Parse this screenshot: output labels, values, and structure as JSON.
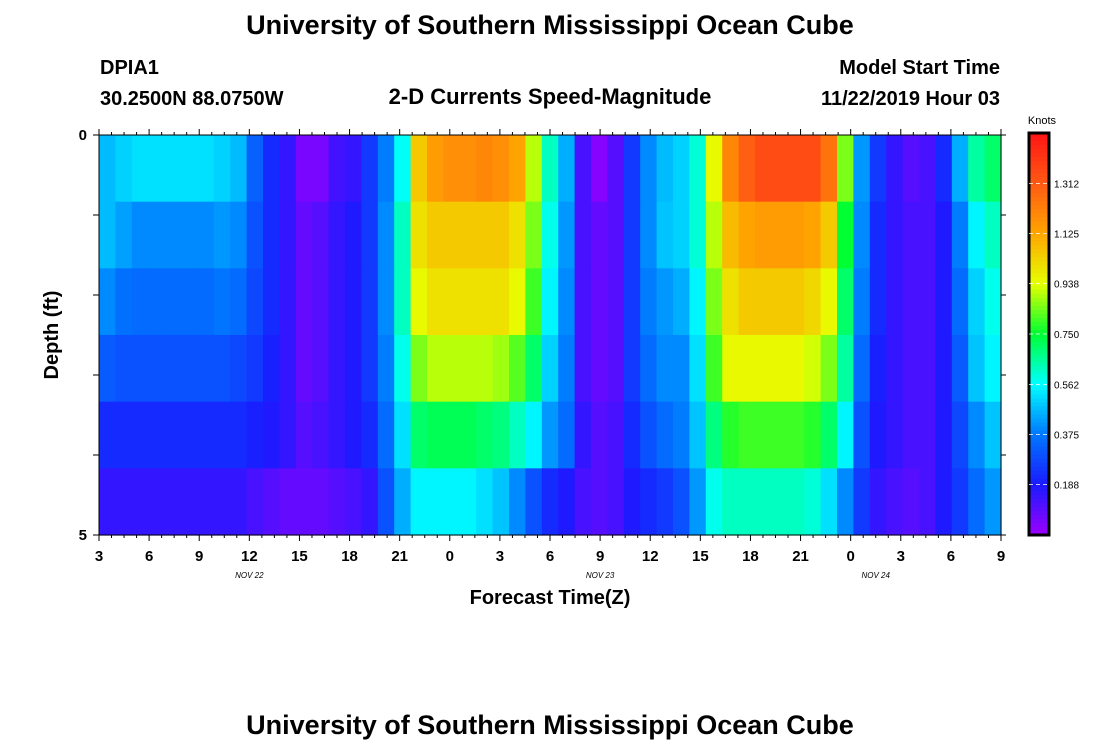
{
  "page": {
    "title_top": "University of Southern Mississippi Ocean Cube",
    "title_bottom": "University of Southern Mississippi Ocean Cube",
    "station_id": "DPIA1",
    "station_coords": "30.2500N 88.0750W",
    "plot_title": "2-D Currents Speed-Magnitude",
    "model_start_label": "Model Start Time",
    "model_start_value": "11/22/2019 Hour 03"
  },
  "colors": {
    "ramp": [
      "#9b00ff",
      "#1a1aff",
      "#0078ff",
      "#00ffff",
      "#00ff33",
      "#e6ff00",
      "#ffa500",
      "#ff5a14",
      "#ff1414"
    ],
    "background": "#ffffff"
  },
  "chart_data": {
    "type": "heatmap",
    "title": "2-D Currents Speed-Magnitude",
    "xlabel": "Forecast Time(Z)",
    "ylabel": "Depth (ft)",
    "x_ticks": [
      "3",
      "6",
      "9",
      "12",
      "15",
      "18",
      "21",
      "0",
      "3",
      "6",
      "9",
      "12",
      "15",
      "18",
      "21",
      "0",
      "3",
      "6",
      "9"
    ],
    "date_labels": [
      {
        "text": "NOV  22",
        "at_tick": 3
      },
      {
        "text": "NOV  23",
        "at_tick": 10
      },
      {
        "text": "NOV  24",
        "at_tick": 15.5
      }
    ],
    "y_ticks": [
      "0",
      "5"
    ],
    "y_range": [
      0,
      5
    ],
    "x_range_hours": [
      0,
      54
    ],
    "colorbar": {
      "label": "Knots",
      "tick_labels": [
        "1.312",
        "1.125",
        "0.938",
        "0.750",
        "0.562",
        "0.375",
        "0.188"
      ],
      "tick_values": [
        1.312,
        1.125,
        0.938,
        0.75,
        0.562,
        0.375,
        0.188
      ],
      "range": [
        0,
        1.5
      ]
    },
    "time_columns": 55,
    "depth_rows": 6,
    "values_knots_by_depth_row": [
      [
        0.47,
        0.5,
        0.52,
        0.52,
        0.52,
        0.52,
        0.52,
        0.5,
        0.47,
        0.33,
        0.22,
        0.15,
        0.05,
        0.05,
        0.13,
        0.15,
        0.25,
        0.38,
        0.57,
        1.05,
        1.15,
        1.18,
        1.18,
        1.2,
        1.18,
        1.13,
        0.9,
        0.62,
        0.45,
        0.12,
        0.03,
        0.1,
        0.25,
        0.4,
        0.47,
        0.5,
        0.6,
        0.95,
        1.2,
        1.3,
        1.35,
        1.35,
        1.35,
        1.35,
        1.25,
        0.85,
        0.42,
        0.25,
        0.15,
        0.1,
        0.12,
        0.22,
        0.45,
        0.65,
        0.7
      ],
      [
        0.47,
        0.43,
        0.4,
        0.4,
        0.4,
        0.4,
        0.4,
        0.42,
        0.4,
        0.3,
        0.22,
        0.15,
        0.08,
        0.1,
        0.15,
        0.18,
        0.25,
        0.4,
        0.62,
        1.0,
        1.05,
        1.05,
        1.05,
        1.05,
        1.05,
        1.0,
        0.85,
        0.58,
        0.42,
        0.12,
        0.08,
        0.1,
        0.25,
        0.4,
        0.48,
        0.5,
        0.6,
        0.9,
        1.08,
        1.13,
        1.15,
        1.15,
        1.15,
        1.13,
        1.05,
        0.75,
        0.4,
        0.22,
        0.15,
        0.12,
        0.12,
        0.18,
        0.38,
        0.55,
        0.62
      ],
      [
        0.4,
        0.36,
        0.35,
        0.35,
        0.35,
        0.35,
        0.35,
        0.37,
        0.35,
        0.28,
        0.22,
        0.15,
        0.08,
        0.1,
        0.15,
        0.18,
        0.25,
        0.4,
        0.62,
        0.95,
        1.0,
        1.0,
        1.0,
        1.0,
        1.0,
        0.95,
        0.8,
        0.55,
        0.4,
        0.12,
        0.08,
        0.1,
        0.25,
        0.38,
        0.42,
        0.45,
        0.55,
        0.85,
        1.0,
        1.05,
        1.05,
        1.05,
        1.05,
        1.02,
        0.95,
        0.7,
        0.38,
        0.22,
        0.15,
        0.12,
        0.12,
        0.18,
        0.35,
        0.5,
        0.58
      ],
      [
        0.32,
        0.3,
        0.3,
        0.3,
        0.3,
        0.3,
        0.3,
        0.3,
        0.28,
        0.25,
        0.2,
        0.15,
        0.08,
        0.1,
        0.15,
        0.18,
        0.25,
        0.38,
        0.58,
        0.85,
        0.9,
        0.9,
        0.9,
        0.9,
        0.88,
        0.82,
        0.7,
        0.5,
        0.38,
        0.12,
        0.08,
        0.1,
        0.25,
        0.35,
        0.4,
        0.4,
        0.52,
        0.8,
        0.95,
        0.95,
        0.95,
        0.95,
        0.95,
        0.92,
        0.85,
        0.65,
        0.35,
        0.2,
        0.15,
        0.12,
        0.12,
        0.18,
        0.32,
        0.48,
        0.55
      ],
      [
        0.22,
        0.22,
        0.22,
        0.22,
        0.22,
        0.22,
        0.22,
        0.22,
        0.22,
        0.2,
        0.18,
        0.15,
        0.1,
        0.12,
        0.15,
        0.18,
        0.22,
        0.35,
        0.52,
        0.7,
        0.72,
        0.72,
        0.72,
        0.7,
        0.68,
        0.62,
        0.55,
        0.42,
        0.35,
        0.15,
        0.1,
        0.12,
        0.22,
        0.3,
        0.35,
        0.38,
        0.48,
        0.68,
        0.78,
        0.8,
        0.8,
        0.8,
        0.8,
        0.78,
        0.7,
        0.55,
        0.3,
        0.18,
        0.15,
        0.12,
        0.12,
        0.18,
        0.28,
        0.4,
        0.48
      ],
      [
        0.15,
        0.15,
        0.15,
        0.15,
        0.15,
        0.15,
        0.15,
        0.15,
        0.15,
        0.12,
        0.1,
        0.08,
        0.08,
        0.08,
        0.1,
        0.12,
        0.15,
        0.3,
        0.45,
        0.55,
        0.55,
        0.55,
        0.55,
        0.52,
        0.48,
        0.4,
        0.3,
        0.22,
        0.18,
        0.12,
        0.1,
        0.12,
        0.18,
        0.22,
        0.25,
        0.3,
        0.42,
        0.58,
        0.62,
        0.62,
        0.62,
        0.62,
        0.62,
        0.6,
        0.52,
        0.4,
        0.25,
        0.15,
        0.12,
        0.1,
        0.12,
        0.18,
        0.25,
        0.35,
        0.42
      ]
    ]
  }
}
